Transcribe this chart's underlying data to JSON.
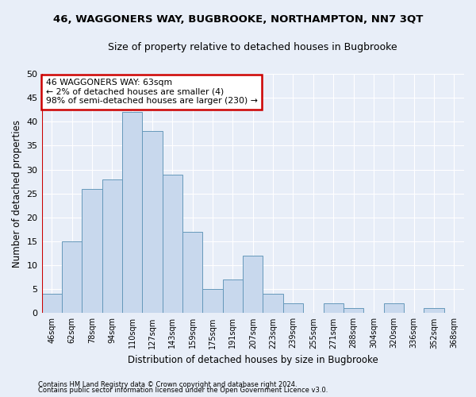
{
  "title_line1": "46, WAGGONERS WAY, BUGBROOKE, NORTHAMPTON, NN7 3QT",
  "title_line2": "Size of property relative to detached houses in Bugbrooke",
  "xlabel": "Distribution of detached houses by size in Bugbrooke",
  "ylabel": "Number of detached properties",
  "footnote1": "Contains HM Land Registry data © Crown copyright and database right 2024.",
  "footnote2": "Contains public sector information licensed under the Open Government Licence v3.0.",
  "bar_labels": [
    "46sqm",
    "62sqm",
    "78sqm",
    "94sqm",
    "110sqm",
    "127sqm",
    "143sqm",
    "159sqm",
    "175sqm",
    "191sqm",
    "207sqm",
    "223sqm",
    "239sqm",
    "255sqm",
    "271sqm",
    "288sqm",
    "304sqm",
    "320sqm",
    "336sqm",
    "352sqm",
    "368sqm"
  ],
  "bar_values": [
    4,
    15,
    26,
    28,
    42,
    38,
    29,
    17,
    5,
    7,
    12,
    4,
    2,
    0,
    2,
    1,
    0,
    2,
    0,
    1,
    0
  ],
  "bar_color": "#c8d8ed",
  "bar_edge_color": "#6699bb",
  "ylim": [
    0,
    50
  ],
  "yticks": [
    0,
    5,
    10,
    15,
    20,
    25,
    30,
    35,
    40,
    45,
    50
  ],
  "property_line_x": -0.5,
  "annotation_title": "46 WAGGONERS WAY: 63sqm",
  "annotation_line2": "← 2% of detached houses are smaller (4)",
  "annotation_line3": "98% of semi-detached houses are larger (230) →",
  "annotation_box_color": "#ffffff",
  "annotation_box_edge": "#cc0000",
  "red_line_color": "#cc0000",
  "background_color": "#e8eef8",
  "grid_color": "#ffffff",
  "fig_width": 6.0,
  "fig_height": 5.0,
  "dpi": 100
}
